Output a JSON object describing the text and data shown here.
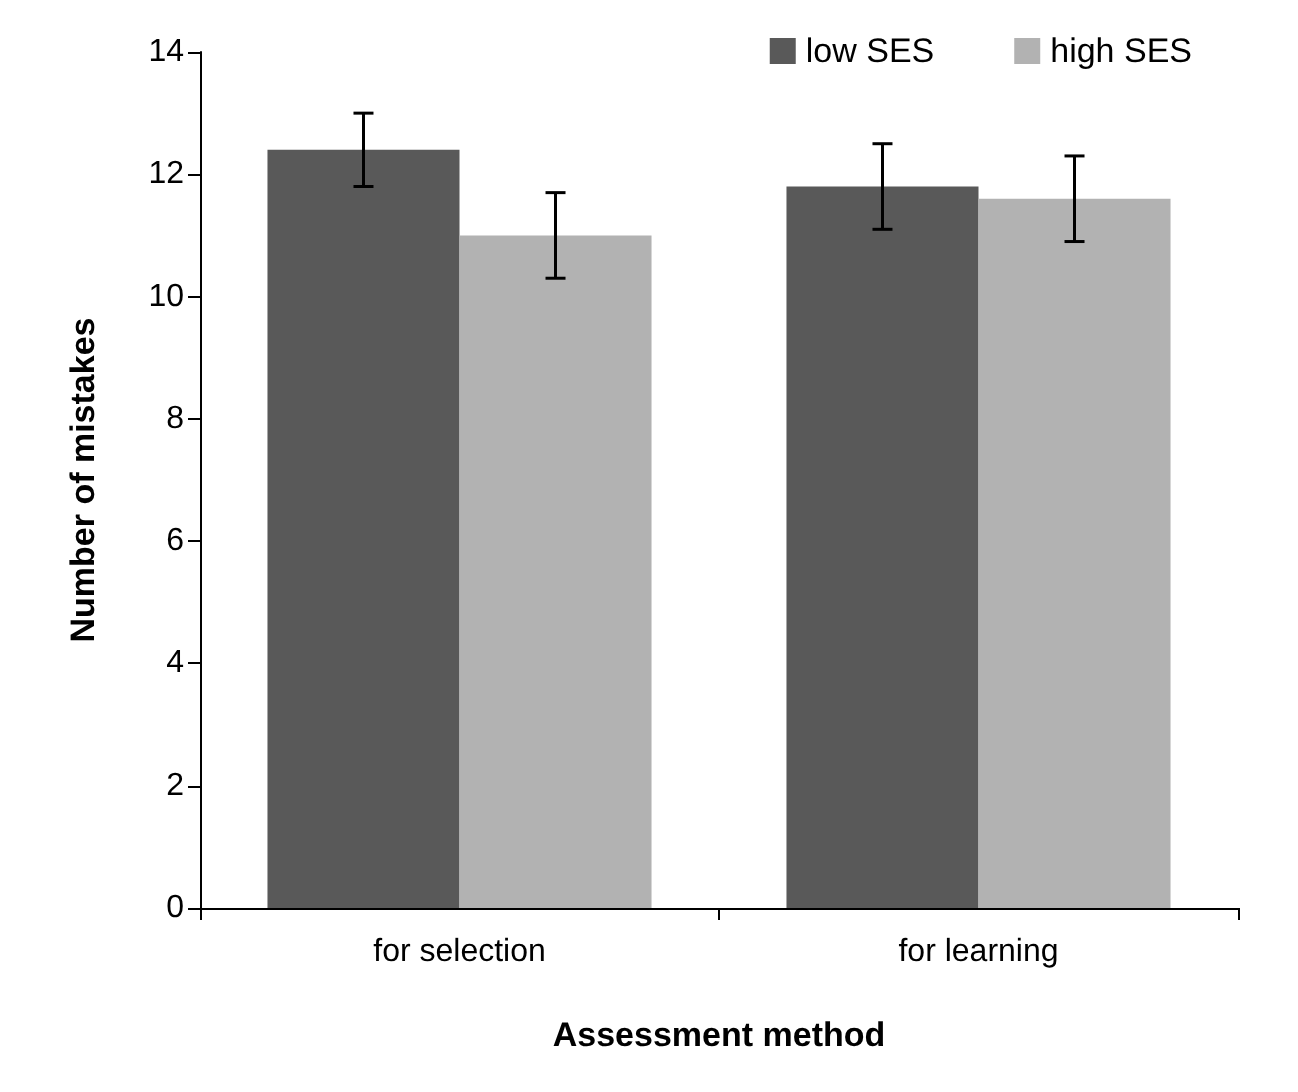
{
  "chart_data": {
    "type": "bar",
    "xlabel": "Assessment method",
    "ylabel": "Number of mistakes",
    "categories": [
      "for selection",
      "for learning"
    ],
    "series": [
      {
        "name": "low SES",
        "color": "#595959",
        "values": [
          12.4,
          11.8
        ],
        "errors": [
          0.6,
          0.7
        ]
      },
      {
        "name": "high SES",
        "color": "#b2b2b2",
        "values": [
          11.0,
          11.6
        ],
        "errors": [
          0.7,
          0.7
        ]
      }
    ],
    "ylim": [
      0,
      14
    ],
    "yticks": [
      0,
      2,
      4,
      6,
      8,
      10,
      12,
      14
    ],
    "grid": false,
    "legend": "top right"
  }
}
